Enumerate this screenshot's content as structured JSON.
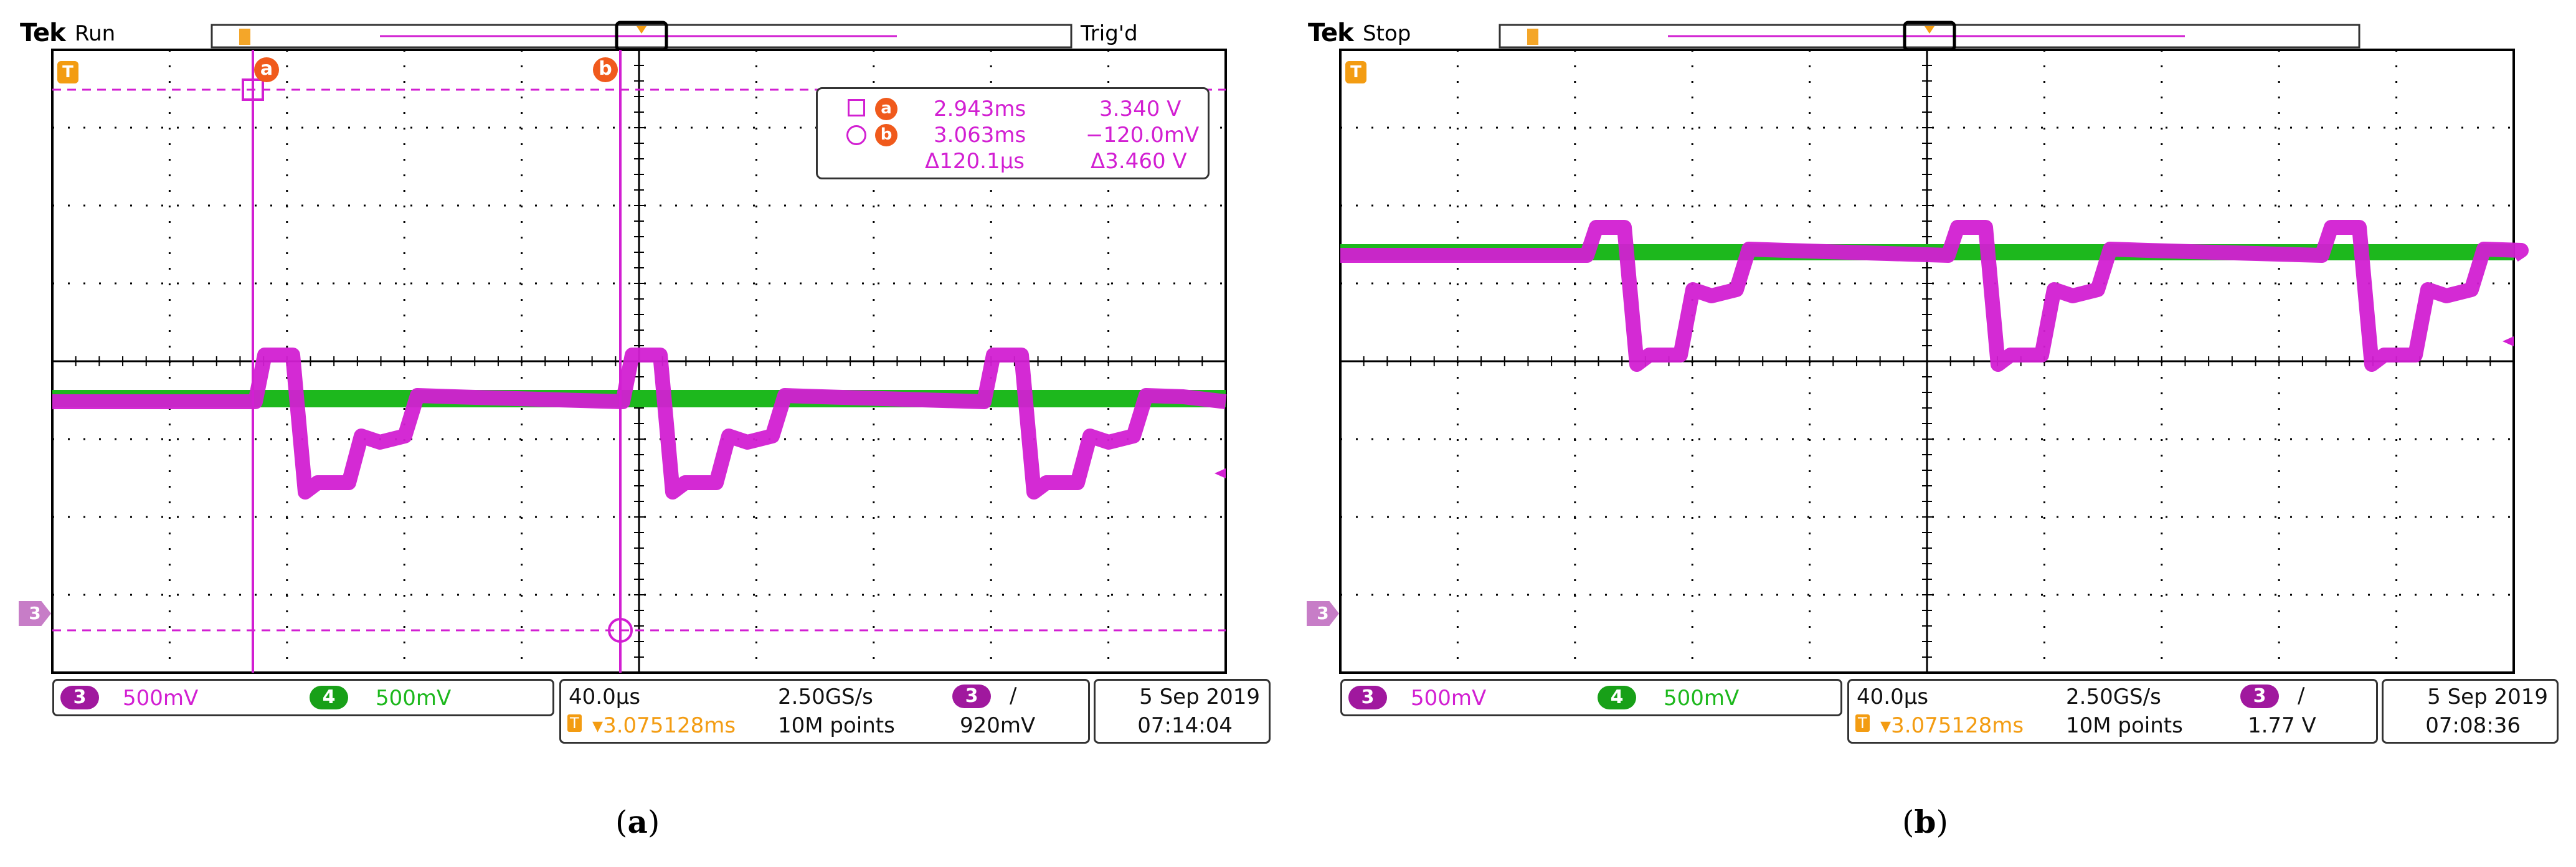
{
  "panels": [
    {
      "id": "a",
      "brand": "Tek",
      "state": "Run",
      "trig_status": "Trig'd",
      "caption_open": "(",
      "caption_letter": "a",
      "caption_close": ")",
      "cursor_a_label": "a",
      "cursor_b_label": "b",
      "readout": {
        "a_time": "2.943ms",
        "a_volt": "3.340 V",
        "b_time": "3.063ms",
        "b_volt": "−120.0mV",
        "delta_time": "Δ120.1µs",
        "delta_volt": "Δ3.460 V"
      },
      "ch3_num": "3",
      "ch3_scale": "500mV",
      "ch4_num": "4",
      "ch4_scale": "500mV",
      "timebase": "40.0µs",
      "sample_rate": "2.50GS/s",
      "trig_ch": "3",
      "trig_slope": "∕",
      "trig_pos": "▾3.075128ms",
      "record": "10M points",
      "trig_level": "920mV",
      "date": "5 Sep 2019",
      "time": "07:14:04",
      "ch3_marker": "3",
      "trig_marker": "T",
      "trig_t_icon": "T"
    },
    {
      "id": "b",
      "brand": "Tek",
      "state": "Stop",
      "caption_open": "(",
      "caption_letter": "b",
      "caption_close": ")",
      "ch3_num": "3",
      "ch3_scale": "500mV",
      "ch4_num": "4",
      "ch4_scale": "500mV",
      "timebase": "40.0µs",
      "sample_rate": "2.50GS/s",
      "trig_ch": "3",
      "trig_slope": "∕",
      "trig_pos": "▾3.075128ms",
      "record": "10M points",
      "trig_level": "1.77 V",
      "date": "5 Sep 2019",
      "time": "07:08:36",
      "ch3_marker": "3",
      "trig_marker": "T",
      "trig_t_icon": "T"
    }
  ],
  "colors": {
    "ch3": "#d21fd2",
    "ch4": "#1db81d",
    "trigger": "#f39c12",
    "grid": "#000000"
  }
}
